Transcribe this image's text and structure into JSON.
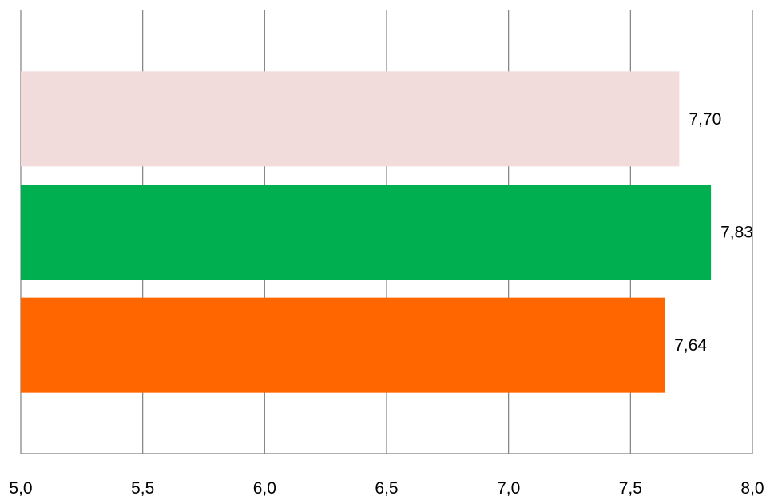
{
  "chart_data": {
    "type": "bar",
    "orientation": "horizontal",
    "title": "",
    "xlabel": "",
    "ylabel": "",
    "xlim": [
      5.0,
      8.0
    ],
    "x_ticks": [
      5.0,
      5.5,
      6.0,
      6.5,
      7.0,
      7.5,
      8.0
    ],
    "x_tick_labels": [
      "5,0",
      "5,5",
      "6,0",
      "6,5",
      "7,0",
      "7,5",
      "8,0"
    ],
    "grid": "vertical",
    "legend": "none",
    "bars": [
      {
        "value": 7.7,
        "label": "7,70",
        "color": "#f2dcdb"
      },
      {
        "value": 7.83,
        "label": "7,83",
        "color": "#00b050"
      },
      {
        "value": 7.64,
        "label": "7,64",
        "color": "#ff6600"
      }
    ]
  },
  "colors": {
    "gridline": "#808080",
    "axis": "#808080"
  }
}
